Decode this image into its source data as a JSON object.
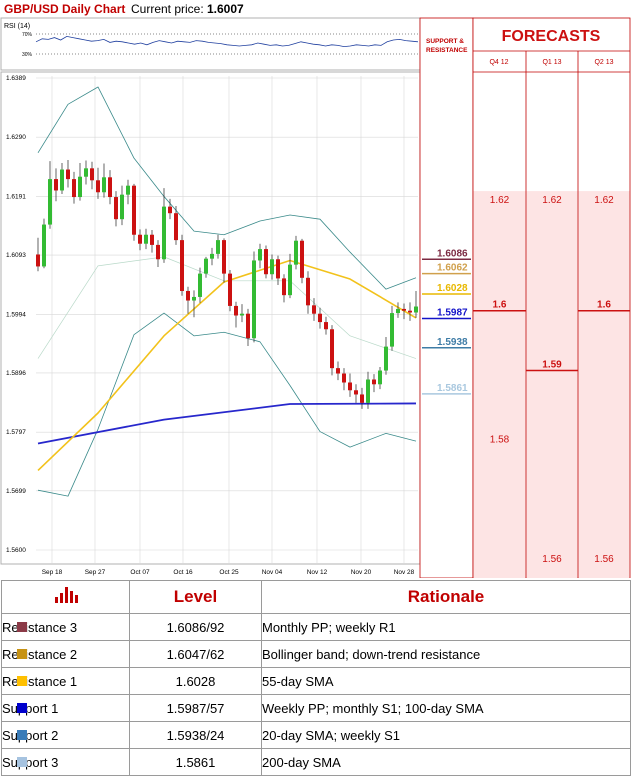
{
  "header": {
    "title": "GBP/USD Daily Chart",
    "price_label": "Current price:",
    "price_value": "1.6007"
  },
  "rsi": {
    "label": "RSI (14)",
    "levels": [
      "70%",
      "30%"
    ]
  },
  "support_resistance_header": "SUPPORT & RESISTANCE",
  "forecasts": {
    "title": "FORECASTS",
    "columns": [
      {
        "label": "Q4 12",
        "values": [
          "1.62",
          "1.6",
          "1.58"
        ]
      },
      {
        "label": "Q1 13",
        "values": [
          "1.62",
          "1.59",
          "1.56"
        ]
      },
      {
        "label": "Q2 13",
        "values": [
          "1.62",
          "1.6",
          "1.56"
        ]
      }
    ]
  },
  "chart_data": {
    "type": "candlestick",
    "title": "GBP/USD Daily Chart",
    "y_ticks": [
      "1.6389",
      "1.6290",
      "1.6191",
      "1.6093",
      "1.5994",
      "1.5896",
      "1.5797",
      "1.5699",
      "1.5600"
    ],
    "ylim": [
      1.56,
      1.6389
    ],
    "x_ticks": [
      "Sep 18",
      "Sep 27",
      "Oct 07",
      "Oct 16",
      "Oct 25",
      "Nov 04",
      "Nov 12",
      "Nov 20",
      "Nov 28"
    ],
    "grid": true,
    "candles": [
      [
        1.6094,
        1.6074,
        1.6122,
        1.6066
      ],
      [
        1.6074,
        1.6144,
        1.6154,
        1.6071
      ],
      [
        1.6144,
        1.622,
        1.625,
        1.6137
      ],
      [
        1.622,
        1.6201,
        1.6238,
        1.6183
      ],
      [
        1.6201,
        1.6236,
        1.6247,
        1.6195
      ],
      [
        1.6236,
        1.622,
        1.6252,
        1.6206
      ],
      [
        1.622,
        1.619,
        1.6232,
        1.6179
      ],
      [
        1.619,
        1.6224,
        1.6247,
        1.6184
      ],
      [
        1.6224,
        1.6238,
        1.6251,
        1.6211
      ],
      [
        1.6238,
        1.6218,
        1.6249,
        1.6203
      ],
      [
        1.6218,
        1.6198,
        1.6239,
        1.6187
      ],
      [
        1.6198,
        1.6223,
        1.6246,
        1.6189
      ],
      [
        1.6223,
        1.619,
        1.6235,
        1.6178
      ],
      [
        1.619,
        1.6153,
        1.62,
        1.6141
      ],
      [
        1.6153,
        1.6194,
        1.6209,
        1.6143
      ],
      [
        1.6194,
        1.6209,
        1.6219,
        1.6178
      ],
      [
        1.6209,
        1.6127,
        1.6212,
        1.6117
      ],
      [
        1.6127,
        1.6112,
        1.6136,
        1.6101
      ],
      [
        1.6112,
        1.6127,
        1.6137,
        1.6103
      ],
      [
        1.6127,
        1.611,
        1.6135,
        1.6097
      ],
      [
        1.611,
        1.6086,
        1.6118,
        1.6073
      ],
      [
        1.6086,
        1.6174,
        1.6205,
        1.608
      ],
      [
        1.6174,
        1.6163,
        1.6187,
        1.6153
      ],
      [
        1.6163,
        1.6118,
        1.6175,
        1.611
      ],
      [
        1.6118,
        1.6033,
        1.6127,
        1.6025
      ],
      [
        1.6033,
        1.6017,
        1.604,
        1.5995
      ],
      [
        1.6017,
        1.6023,
        1.6034,
        1.5989
      ],
      [
        1.6023,
        1.6062,
        1.6072,
        1.6013
      ],
      [
        1.6062,
        1.6087,
        1.609,
        1.6055
      ],
      [
        1.6087,
        1.6095,
        1.6105,
        1.6076
      ],
      [
        1.6095,
        1.6118,
        1.6127,
        1.6087
      ],
      [
        1.6118,
        1.6062,
        1.6121,
        1.6047
      ],
      [
        1.6062,
        1.6008,
        1.6068,
        1.5999
      ],
      [
        1.6008,
        1.5992,
        1.6015,
        1.5972
      ],
      [
        1.5992,
        1.5995,
        1.6011,
        1.5981
      ],
      [
        1.5995,
        1.5954,
        1.6003,
        1.5941
      ],
      [
        1.5954,
        1.6084,
        1.6099,
        1.5947
      ],
      [
        1.6084,
        1.6103,
        1.6112,
        1.6071
      ],
      [
        1.6103,
        1.6061,
        1.6109,
        1.6054
      ],
      [
        1.6061,
        1.6086,
        1.6094,
        1.6052
      ],
      [
        1.6086,
        1.6054,
        1.6092,
        1.6043
      ],
      [
        1.6054,
        1.6026,
        1.6061,
        1.6014
      ],
      [
        1.6026,
        1.6077,
        1.6095,
        1.6021
      ],
      [
        1.6077,
        1.6117,
        1.6125,
        1.6069
      ],
      [
        1.6117,
        1.6055,
        1.612,
        1.6046
      ],
      [
        1.6055,
        1.6009,
        1.6066,
        1.5995
      ],
      [
        1.6009,
        1.5995,
        1.6021,
        1.5983
      ],
      [
        1.5995,
        1.5981,
        1.6005,
        1.597
      ],
      [
        1.5981,
        1.5969,
        1.599,
        1.596
      ],
      [
        1.5969,
        1.5904,
        1.5976,
        1.5892
      ],
      [
        1.5904,
        1.5895,
        1.5915,
        1.5884
      ],
      [
        1.5895,
        1.588,
        1.5904,
        1.5867
      ],
      [
        1.588,
        1.5867,
        1.5895,
        1.5856
      ],
      [
        1.5867,
        1.586,
        1.5877,
        1.5846
      ],
      [
        1.586,
        1.5846,
        1.5871,
        1.5836
      ],
      [
        1.5846,
        1.5885,
        1.5898,
        1.5836
      ],
      [
        1.5885,
        1.5877,
        1.5894,
        1.5864
      ],
      [
        1.5877,
        1.59,
        1.5906,
        1.5869
      ],
      [
        1.59,
        1.594,
        1.5956,
        1.5893
      ],
      [
        1.594,
        1.5996,
        1.6008,
        1.5933
      ],
      [
        1.5996,
        1.6003,
        1.6014,
        1.5988
      ],
      [
        1.6003,
        1.6,
        1.6012,
        1.5986
      ],
      [
        1.6,
        1.5997,
        1.6014,
        1.5983
      ],
      [
        1.5997,
        1.6007,
        1.6033,
        1.5988
      ]
    ],
    "sma_yellow": [
      [
        0,
        1.5733
      ],
      [
        10,
        1.5829
      ],
      [
        21,
        1.5958
      ],
      [
        31,
        1.6048
      ],
      [
        42,
        1.6084
      ],
      [
        52,
        1.6053
      ],
      [
        63,
        1.5988
      ]
    ],
    "sma_blue": [
      [
        0,
        1.5778
      ],
      [
        21,
        1.5818
      ],
      [
        42,
        1.5844
      ],
      [
        63,
        1.5845
      ]
    ],
    "boll_upper": [
      [
        0,
        1.6264
      ],
      [
        5,
        1.6345
      ],
      [
        10,
        1.6374
      ],
      [
        16,
        1.6255
      ],
      [
        21,
        1.6191
      ],
      [
        26,
        1.6133
      ],
      [
        31,
        1.6127
      ],
      [
        37,
        1.615
      ],
      [
        42,
        1.616
      ],
      [
        47,
        1.6153
      ],
      [
        52,
        1.6098
      ],
      [
        58,
        1.6036
      ],
      [
        63,
        1.6055
      ]
    ],
    "boll_lower": [
      [
        0,
        1.57
      ],
      [
        5,
        1.569
      ],
      [
        10,
        1.5802
      ],
      [
        16,
        1.596
      ],
      [
        21,
        1.5996
      ],
      [
        26,
        1.5958
      ],
      [
        31,
        1.5964
      ],
      [
        37,
        1.5948
      ],
      [
        42,
        1.5875
      ],
      [
        47,
        1.5798
      ],
      [
        52,
        1.5772
      ],
      [
        58,
        1.5795
      ],
      [
        63,
        1.5782
      ]
    ],
    "boll_mid": [
      [
        0,
        1.592
      ],
      [
        10,
        1.6075
      ],
      [
        21,
        1.609
      ],
      [
        31,
        1.605
      ],
      [
        42,
        1.605
      ],
      [
        52,
        1.5958
      ],
      [
        63,
        1.592
      ]
    ],
    "level_labels": [
      {
        "value": 1.6086,
        "label": "1.6086",
        "color": "#7b2a42"
      },
      {
        "value": 1.6062,
        "label": "1.6062",
        "color": "#d0a04c"
      },
      {
        "value": 1.6028,
        "label": "1.6028",
        "color": "#e8b800"
      },
      {
        "value": 1.5987,
        "label": "1.5987",
        "color": "#1313c8"
      },
      {
        "value": 1.5938,
        "label": "1.5938",
        "color": "#3e7ca6"
      },
      {
        "value": 1.5861,
        "label": "1.5861",
        "color": "#a9c8df"
      }
    ],
    "rsi_values": [
      57,
      62,
      61,
      64,
      60,
      66,
      64,
      62,
      60,
      58,
      59,
      61,
      56,
      58,
      57,
      55,
      53,
      55,
      52,
      56,
      59,
      57,
      55,
      58,
      57,
      56,
      59,
      58,
      56,
      55,
      54,
      52,
      51,
      50,
      51,
      52,
      55,
      53,
      51,
      52,
      50,
      51,
      54,
      57,
      55,
      53,
      52,
      50,
      52,
      51,
      49,
      50,
      52,
      51,
      50,
      52,
      51,
      57,
      60,
      61,
      59,
      58,
      57
    ]
  },
  "colors": {
    "bull": "#33bb33",
    "bear": "#cc1111",
    "accent": "#c00000"
  },
  "levels_table": {
    "headers": [
      "Level",
      "Rationale"
    ],
    "icon": "bar-chart-icon",
    "rows": [
      {
        "name": "Resistance 3",
        "level": "1.6086/92",
        "rationale": "Monthly PP; weekly R1",
        "color": "#8b3a47"
      },
      {
        "name": "Resistance 2",
        "level": "1.6047/62",
        "rationale": "Bollinger band; down-trend resistance",
        "color": "#c69214"
      },
      {
        "name": "Resistance 1",
        "level": "1.6028",
        "rationale": "55-day SMA",
        "color": "#ffc000"
      },
      {
        "name": "Support 1",
        "level": "1.5987/57",
        "rationale": "Weekly PP; monthly S1; 100-day SMA",
        "color": "#0000cc"
      },
      {
        "name": "Support 2",
        "level": "1.5938/24",
        "rationale": "20-day SMA; weekly S1",
        "color": "#3a7cb8"
      },
      {
        "name": "Support 3",
        "level": "1.5861",
        "rationale": "200-day SMA",
        "color": "#a6c3e0"
      }
    ]
  }
}
